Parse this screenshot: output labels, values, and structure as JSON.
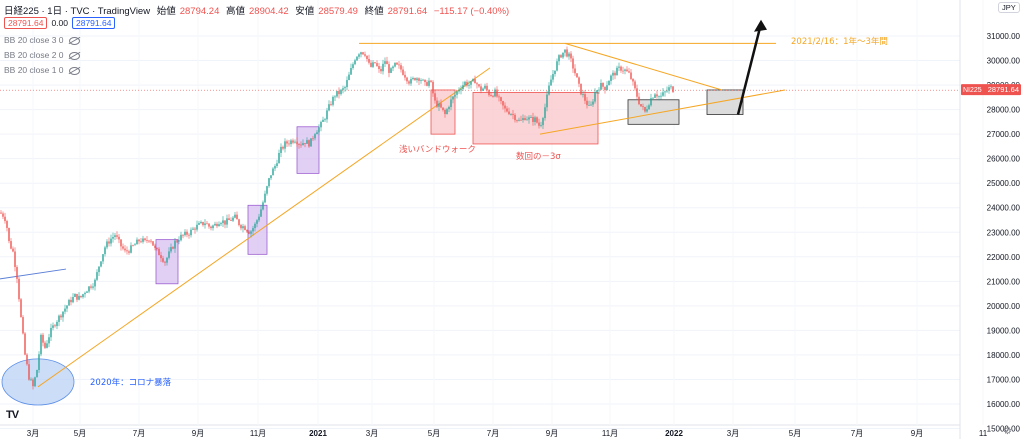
{
  "header": {
    "title": "日経225 · 1日 · TVC · TradingView",
    "open_label": "始値",
    "open": "28794.24",
    "high_label": "高値",
    "high": "28904.42",
    "low_label": "安値",
    "low": "28579.49",
    "close_label": "終値",
    "close": "28791.64",
    "change": "−115.17 (−0.40%)"
  },
  "price_boxes": {
    "left": "28791.64",
    "middle": "0.00",
    "right": "28791.64"
  },
  "indicators": [
    "BB 20 close 3 0",
    "BB 20 close 2 0",
    "BB 20 close 1 0"
  ],
  "currency": "JPY",
  "current_price_label": {
    "symbol": "NI225",
    "value": "28791.64"
  },
  "annotations": {
    "corona": "2020年：コロナ暴落",
    "shallow_band": "浅いバンドウォーク",
    "minus3sigma": "数回の－3σ",
    "future": "2021/2/16：1年～3年間"
  },
  "colors": {
    "up": "#26a69a",
    "down": "#ef5350",
    "trend": "#f5a623",
    "purple": "#d8bff0",
    "pink": "#f9c6c9",
    "gray": "#d0d0d0",
    "blueellipse": "#b7cff5"
  },
  "icons": {
    "logo": "tv-logo-icon",
    "settings": "gear-icon"
  },
  "chart_data": {
    "type": "candlestick",
    "x_axis": {
      "ticks": [
        "3月",
        "5月",
        "7月",
        "9月",
        "11月",
        "2021",
        "3月",
        "5月",
        "7月",
        "9月",
        "11月",
        "2022",
        "3月",
        "5月",
        "7月",
        "9月",
        "11"
      ],
      "range": [
        "2020-01",
        "2022-11"
      ]
    },
    "y_axis": {
      "ticks": [
        "31000.00",
        "30000.00",
        "29000.00",
        "28000.00",
        "27000.00",
        "26000.00",
        "25000.00",
        "24000.00",
        "23000.00",
        "22000.00",
        "21000.00",
        "20000.00",
        "19000.00",
        "18000.00",
        "17000.00",
        "16000.00",
        "15000.00"
      ],
      "range": [
        15000,
        31500
      ]
    },
    "path": [
      [
        0,
        23800
      ],
      [
        3,
        23700
      ],
      [
        6,
        23500
      ],
      [
        9,
        22600
      ],
      [
        13,
        22200
      ],
      [
        17,
        21200
      ],
      [
        21,
        19500
      ],
      [
        25,
        18000
      ],
      [
        29,
        17100
      ],
      [
        33,
        16700
      ],
      [
        37,
        17400
      ],
      [
        41,
        18700
      ],
      [
        45,
        18300
      ],
      [
        50,
        18900
      ],
      [
        55,
        19300
      ],
      [
        60,
        19600
      ],
      [
        65,
        19900
      ],
      [
        70,
        20200
      ],
      [
        75,
        20400
      ],
      [
        80,
        20300
      ],
      [
        85,
        20600
      ],
      [
        90,
        20800
      ],
      [
        95,
        21000
      ],
      [
        100,
        21800
      ],
      [
        105,
        22400
      ],
      [
        110,
        22700
      ],
      [
        115,
        22900
      ],
      [
        120,
        22500
      ],
      [
        125,
        22200
      ],
      [
        130,
        22300
      ],
      [
        135,
        22500
      ],
      [
        140,
        22700
      ],
      [
        145,
        22600
      ],
      [
        150,
        22800
      ],
      [
        155,
        22300
      ],
      [
        160,
        22100
      ],
      [
        165,
        21800
      ],
      [
        170,
        22200
      ],
      [
        175,
        22600
      ],
      [
        180,
        22800
      ],
      [
        185,
        22900
      ],
      [
        190,
        23000
      ],
      [
        195,
        23200
      ],
      [
        200,
        23300
      ],
      [
        205,
        23400
      ],
      [
        210,
        23200
      ],
      [
        215,
        23300
      ],
      [
        220,
        23500
      ],
      [
        225,
        23400
      ],
      [
        230,
        23500
      ],
      [
        235,
        23600
      ],
      [
        240,
        23300
      ],
      [
        245,
        23200
      ],
      [
        250,
        23000
      ],
      [
        255,
        23300
      ],
      [
        260,
        23800
      ],
      [
        265,
        24500
      ],
      [
        270,
        25300
      ],
      [
        275,
        25700
      ],
      [
        280,
        26300
      ],
      [
        285,
        26600
      ],
      [
        290,
        26700
      ],
      [
        295,
        26800
      ],
      [
        300,
        26600
      ],
      [
        305,
        26700
      ],
      [
        310,
        26600
      ],
      [
        315,
        27100
      ],
      [
        320,
        27300
      ],
      [
        325,
        27700
      ],
      [
        330,
        28200
      ],
      [
        335,
        28600
      ],
      [
        340,
        28700
      ],
      [
        345,
        28900
      ],
      [
        350,
        29500
      ],
      [
        355,
        30100
      ],
      [
        360,
        30400
      ],
      [
        365,
        30300
      ],
      [
        370,
        29700
      ],
      [
        375,
        29900
      ],
      [
        380,
        29500
      ],
      [
        385,
        30000
      ],
      [
        390,
        29500
      ],
      [
        395,
        29800
      ],
      [
        400,
        29700
      ],
      [
        405,
        29400
      ],
      [
        410,
        29100
      ],
      [
        415,
        29300
      ],
      [
        420,
        29300
      ],
      [
        425,
        29000
      ],
      [
        430,
        29200
      ],
      [
        435,
        28300
      ],
      [
        440,
        28100
      ],
      [
        445,
        27800
      ],
      [
        450,
        28300
      ],
      [
        455,
        28600
      ],
      [
        460,
        28900
      ],
      [
        465,
        29100
      ],
      [
        470,
        29000
      ],
      [
        475,
        29200
      ],
      [
        480,
        28800
      ],
      [
        485,
        28900
      ],
      [
        490,
        28600
      ],
      [
        495,
        28700
      ],
      [
        500,
        28300
      ],
      [
        505,
        28000
      ],
      [
        510,
        27900
      ],
      [
        515,
        27700
      ],
      [
        520,
        27500
      ],
      [
        525,
        27700
      ],
      [
        530,
        27600
      ],
      [
        535,
        27600
      ],
      [
        540,
        27300
      ],
      [
        545,
        28100
      ],
      [
        550,
        29100
      ],
      [
        555,
        29700
      ],
      [
        560,
        30200
      ],
      [
        565,
        30400
      ],
      [
        570,
        30100
      ],
      [
        575,
        29500
      ],
      [
        580,
        28800
      ],
      [
        585,
        28400
      ],
      [
        590,
        28000
      ],
      [
        595,
        28700
      ],
      [
        600,
        29000
      ],
      [
        605,
        28900
      ],
      [
        610,
        29300
      ],
      [
        615,
        29500
      ],
      [
        620,
        29700
      ],
      [
        625,
        29600
      ],
      [
        630,
        29400
      ],
      [
        635,
        28800
      ],
      [
        640,
        28200
      ],
      [
        645,
        27900
      ],
      [
        650,
        28400
      ],
      [
        655,
        28700
      ],
      [
        660,
        28500
      ],
      [
        665,
        28700
      ],
      [
        670,
        28900
      ],
      [
        674,
        28800
      ]
    ],
    "overlays": {
      "boxes": [
        {
          "color": "purple",
          "x0": 156,
          "x1": 178,
          "y0": 20900,
          "y1": 22700
        },
        {
          "color": "purple",
          "x0": 248,
          "x1": 267,
          "y0": 22100,
          "y1": 24100
        },
        {
          "color": "purple",
          "x0": 297,
          "x1": 319,
          "y0": 25400,
          "y1": 27300
        },
        {
          "color": "pink",
          "x0": 431,
          "x1": 455,
          "y0": 27000,
          "y1": 28800
        },
        {
          "color": "pink",
          "x0": 473,
          "x1": 598,
          "y0": 26600,
          "y1": 28700
        },
        {
          "color": "gray",
          "x0": 628,
          "x1": 679,
          "y0": 27400,
          "y1": 28400
        },
        {
          "color": "gray",
          "x0": 707,
          "x1": 743,
          "y0": 27800,
          "y1": 28800
        }
      ],
      "ellipse": {
        "cx": 38,
        "cy": 16900,
        "rx": 36,
        "ry": 900
      },
      "lines": [
        {
          "from": [
            38,
            16700
          ],
          "to": [
            490,
            29700
          ]
        },
        {
          "from": [
            359,
            30700
          ],
          "to": [
            776,
            30700
          ]
        },
        {
          "from": [
            565,
            30700
          ],
          "to": [
            722,
            28800
          ]
        },
        {
          "from": [
            540,
            27000
          ],
          "to": [
            785,
            28800
          ]
        },
        {
          "from": [
            0,
            21100
          ],
          "to": [
            66,
            21500
          ]
        }
      ],
      "arrow": {
        "from": [
          738,
          27800
        ],
        "to": [
          761,
          31500
        ]
      },
      "current_price_line": 28791.64
    }
  }
}
